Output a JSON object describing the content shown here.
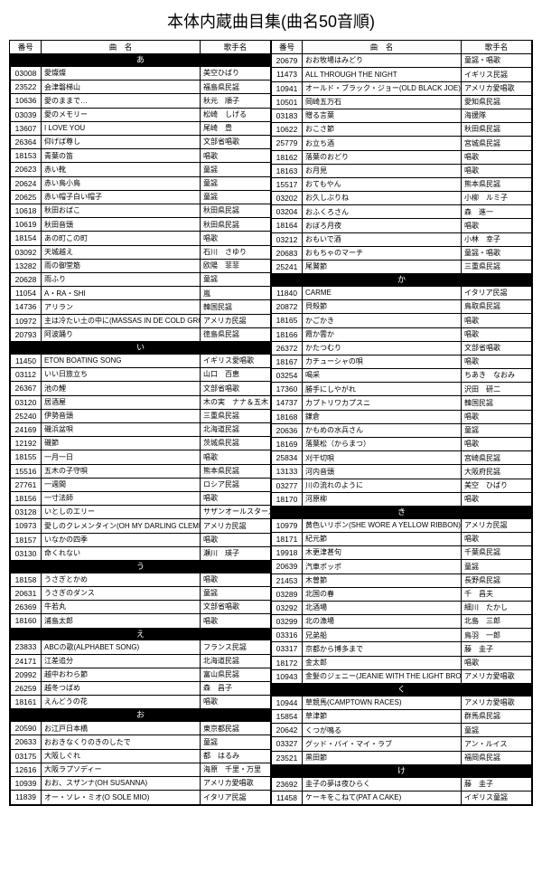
{
  "title": "本体内蔵曲目集(曲名50音順)",
  "headers": {
    "num": "番号",
    "song": "曲　名",
    "singer": "歌手名"
  },
  "left": [
    {
      "section": "あ"
    },
    {
      "n": "03008",
      "s": "愛燦燦",
      "a": "美空ひばり"
    },
    {
      "n": "23522",
      "s": "会津磐梯山",
      "a": "福島県民謡"
    },
    {
      "n": "10636",
      "s": "愛のままで…",
      "a": "秋元　順子"
    },
    {
      "n": "03039",
      "s": "愛のメモリー",
      "a": "松崎　しげる"
    },
    {
      "n": "13607",
      "s": "I LOVE YOU",
      "a": "尾崎　豊"
    },
    {
      "n": "26364",
      "s": "仰げば尊し",
      "a": "文部省唱歌"
    },
    {
      "n": "18153",
      "s": "青葉の笛",
      "a": "唱歌"
    },
    {
      "n": "20623",
      "s": "赤い靴",
      "a": "童謡"
    },
    {
      "n": "20624",
      "s": "赤い鳥小鳥",
      "a": "童謡"
    },
    {
      "n": "20625",
      "s": "赤い帽子白い帽子",
      "a": "童謡"
    },
    {
      "n": "10618",
      "s": "秋田おばこ",
      "a": "秋田県民謡"
    },
    {
      "n": "10619",
      "s": "秋田音頭",
      "a": "秋田県民謡"
    },
    {
      "n": "18154",
      "s": "あの町この町",
      "a": "唱歌"
    },
    {
      "n": "03092",
      "s": "天城越え",
      "a": "石川　さゆり"
    },
    {
      "n": "13282",
      "s": "雨の御堂筋",
      "a": "欧陽　菲菲"
    },
    {
      "n": "20628",
      "s": "雨ふり",
      "a": "童謡"
    },
    {
      "n": "11054",
      "s": "A・RA・SHI",
      "a": "嵐"
    },
    {
      "n": "14736",
      "s": "アリラン",
      "a": "韓国民謡"
    },
    {
      "n": "10972",
      "s": "主は冷たい土の中に(MASSAS IN DE COLD GROUND)",
      "a": "アメリカ民謡"
    },
    {
      "n": "20793",
      "s": "阿波踊り",
      "a": "徳島県民謡"
    },
    {
      "section": "い"
    },
    {
      "n": "11450",
      "s": "ETON BOATING SONG",
      "a": "イギリス愛唱歌"
    },
    {
      "n": "03112",
      "s": "いい日旅立ち",
      "a": "山口　百恵"
    },
    {
      "n": "26367",
      "s": "池の鯉",
      "a": "文部省唱歌"
    },
    {
      "n": "03120",
      "s": "居酒屋",
      "a": "木の実　ナナ＆五木　ひろし"
    },
    {
      "n": "25240",
      "s": "伊勢音頭",
      "a": "三重県民謡"
    },
    {
      "n": "24169",
      "s": "磯浜盆唄",
      "a": "北海道民謡"
    },
    {
      "n": "12192",
      "s": "磯節",
      "a": "茨城県民謡"
    },
    {
      "n": "18155",
      "s": "一月一日",
      "a": "唱歌"
    },
    {
      "n": "15516",
      "s": "五木の子守唄",
      "a": "熊本県民謡"
    },
    {
      "n": "27761",
      "s": "一週間",
      "a": "ロシア民謡"
    },
    {
      "n": "18156",
      "s": "一寸法師",
      "a": "唱歌"
    },
    {
      "n": "03128",
      "s": "いとしのエリー",
      "a": "サザンオールスターズ"
    },
    {
      "n": "10973",
      "s": "愛しのクレメンタイン(OH MY DARLING CLEMENTINE)",
      "a": "アメリカ民謡"
    },
    {
      "n": "18157",
      "s": "いなかの四季",
      "a": "唱歌"
    },
    {
      "n": "03130",
      "s": "命くれない",
      "a": "瀬川　瑛子"
    },
    {
      "section": "う"
    },
    {
      "n": "18158",
      "s": "うさぎとかめ",
      "a": "唱歌"
    },
    {
      "n": "20631",
      "s": "うさぎのダンス",
      "a": "童謡"
    },
    {
      "n": "26369",
      "s": "牛若丸",
      "a": "文部省唱歌"
    },
    {
      "n": "18160",
      "s": "浦島太郎",
      "a": "唱歌"
    },
    {
      "section": "え"
    },
    {
      "n": "23833",
      "s": "ABCの歌(ALPHABET SONG)",
      "a": "フランス民謡"
    },
    {
      "n": "24171",
      "s": "江差追分",
      "a": "北海道民謡"
    },
    {
      "n": "20992",
      "s": "越中おわら節",
      "a": "富山県民謡"
    },
    {
      "n": "26259",
      "s": "越冬つばめ",
      "a": "森　昌子"
    },
    {
      "n": "18161",
      "s": "えんどうの花",
      "a": "唱歌"
    },
    {
      "section": "お"
    },
    {
      "n": "20590",
      "s": "お江戸日本橋",
      "a": "東京都民謡"
    },
    {
      "n": "20633",
      "s": "おおきなくりのきのしたで",
      "a": "童謡"
    },
    {
      "n": "03175",
      "s": "大阪しぐれ",
      "a": "都　はるみ"
    },
    {
      "n": "12616",
      "s": "大阪ラプソディー",
      "a": "海原　千里・万里"
    },
    {
      "n": "10939",
      "s": "おお、スザンナ(OH SUSANNA)",
      "a": "アメリカ愛唱歌"
    },
    {
      "n": "11839",
      "s": "オー・ソレ・ミオ(O SOLE MIO)",
      "a": "イタリア民謡"
    }
  ],
  "right": [
    {
      "n": "20679",
      "s": "おお牧場はみどり",
      "a": "童謡・唱歌"
    },
    {
      "n": "11473",
      "s": "ALL THROUGH THE NIGHT",
      "a": "イギリス民謡"
    },
    {
      "n": "10941",
      "s": "オールド・ブラック・ジョー(OLD BLACK JOE)",
      "a": "アメリカ愛唱歌"
    },
    {
      "n": "10501",
      "s": "岡崎五万石",
      "a": "愛知県民謡"
    },
    {
      "n": "03183",
      "s": "贈る言葉",
      "a": "海援隊"
    },
    {
      "n": "10622",
      "s": "おこさ節",
      "a": "秋田県民謡"
    },
    {
      "n": "25779",
      "s": "お立ち酒",
      "a": "宮城県民謡"
    },
    {
      "n": "18162",
      "s": "落葉のおどり",
      "a": "唱歌"
    },
    {
      "n": "18163",
      "s": "お月見",
      "a": "唱歌"
    },
    {
      "n": "15517",
      "s": "おてもやん",
      "a": "熊本県民謡"
    },
    {
      "n": "03202",
      "s": "お久しぶりね",
      "a": "小柳　ルミ子"
    },
    {
      "n": "03204",
      "s": "おふくろさん",
      "a": "森　進一"
    },
    {
      "n": "18164",
      "s": "おぼろ月夜",
      "a": "唱歌"
    },
    {
      "n": "03212",
      "s": "おもいで酒",
      "a": "小林　幸子"
    },
    {
      "n": "20683",
      "s": "おもちゃのマーチ",
      "a": "童謡・唱歌"
    },
    {
      "n": "25241",
      "s": "尾鷲節",
      "a": "三重県民謡"
    },
    {
      "section": "か"
    },
    {
      "n": "11840",
      "s": "CARME",
      "a": "イタリア民謡"
    },
    {
      "n": "20872",
      "s": "貝殻節",
      "a": "鳥取県民謡"
    },
    {
      "n": "18165",
      "s": "かごかき",
      "a": "唱歌"
    },
    {
      "n": "18166",
      "s": "霞か雲か",
      "a": "唱歌"
    },
    {
      "n": "26372",
      "s": "かたつむり",
      "a": "文部省唱歌"
    },
    {
      "n": "18167",
      "s": "カチューシャの唄",
      "a": "唱歌"
    },
    {
      "n": "03254",
      "s": "喝采",
      "a": "ちあき　なおみ"
    },
    {
      "n": "17360",
      "s": "勝手にしやがれ",
      "a": "沢田　研二"
    },
    {
      "n": "14737",
      "s": "カプトリワカプスニ",
      "a": "韓国民謡"
    },
    {
      "n": "18168",
      "s": "鎌倉",
      "a": "唱歌"
    },
    {
      "n": "20636",
      "s": "かもめの水兵さん",
      "a": "童謡"
    },
    {
      "n": "18169",
      "s": "落葉松（からまつ）",
      "a": "唱歌"
    },
    {
      "n": "25834",
      "s": "刈干切唄",
      "a": "宮崎県民謡"
    },
    {
      "n": "13133",
      "s": "河内音頭",
      "a": "大阪府民謡"
    },
    {
      "n": "03277",
      "s": "川の流れのように",
      "a": "美空　ひばり"
    },
    {
      "n": "18170",
      "s": "河原柳",
      "a": "唱歌"
    },
    {
      "section": "き"
    },
    {
      "n": "10979",
      "s": "黄色いリボン(SHE WORE A YELLOW RIBBON)",
      "a": "アメリカ民謡"
    },
    {
      "n": "18171",
      "s": "紀元節",
      "a": "唱歌"
    },
    {
      "n": "19918",
      "s": "木更津甚句",
      "a": "千葉県民謡"
    },
    {
      "n": "20639",
      "s": "汽車ポッポ",
      "a": "童謡"
    },
    {
      "n": "21453",
      "s": "木曽節",
      "a": "長野県民謡"
    },
    {
      "n": "03289",
      "s": "北国の春",
      "a": "千　昌夫"
    },
    {
      "n": "03292",
      "s": "北酒場",
      "a": "細川　たかし"
    },
    {
      "n": "03299",
      "s": "北の漁場",
      "a": "北島　三郎"
    },
    {
      "n": "03316",
      "s": "兄弟船",
      "a": "鳥羽　一郎"
    },
    {
      "n": "03317",
      "s": "京都から博多まで",
      "a": "藤　圭子"
    },
    {
      "n": "18172",
      "s": "金太郎",
      "a": "唱歌"
    },
    {
      "n": "10943",
      "s": "金髪のジェニー(JEANIE WITH THE LIGHT BROWN HAIR)",
      "a": "アメリカ愛唱歌"
    },
    {
      "section": "く"
    },
    {
      "n": "10944",
      "s": "草競馬(CAMPTOWN RACES)",
      "a": "アメリカ愛唱歌"
    },
    {
      "n": "15854",
      "s": "草津節",
      "a": "群馬県民謡"
    },
    {
      "n": "20642",
      "s": "くつが鳴る",
      "a": "童謡"
    },
    {
      "n": "03327",
      "s": "グッド・バイ・マイ・ラブ",
      "a": "アン・ルイス"
    },
    {
      "n": "23521",
      "s": "黒田節",
      "a": "福岡県民謡"
    },
    {
      "section": "け"
    },
    {
      "n": "23692",
      "s": "圭子の夢は夜ひらく",
      "a": "藤　圭子"
    },
    {
      "n": "11458",
      "s": "ケーキをこねて(PAT A CAKE)",
      "a": "イギリス童謡"
    }
  ]
}
